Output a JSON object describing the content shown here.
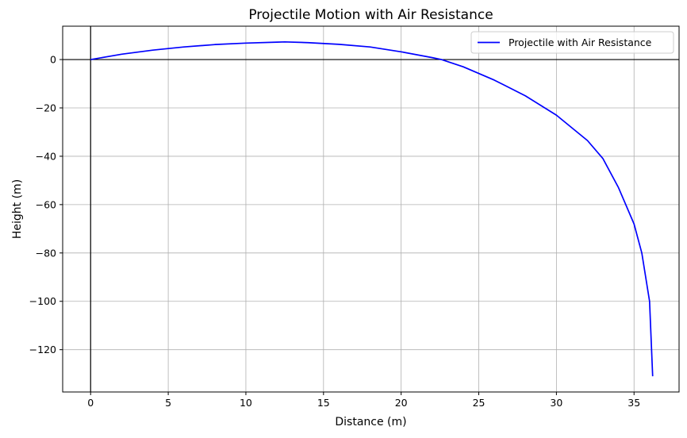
{
  "chart_data": {
    "type": "line",
    "title": "Projectile Motion with Air Resistance",
    "xlabel": "Distance (m)",
    "ylabel": "Height (m)",
    "xlim": [
      -1.8,
      37.9
    ],
    "ylim": [
      -137.5,
      13.8
    ],
    "xticks": [
      0,
      5,
      10,
      15,
      20,
      25,
      30,
      35
    ],
    "yticks": [
      0,
      -20,
      -40,
      -60,
      -80,
      -100,
      -120
    ],
    "xtick_labels": [
      "0",
      "5",
      "10",
      "15",
      "20",
      "25",
      "30",
      "35"
    ],
    "ytick_labels": [
      "0",
      "−20",
      "−40",
      "−60",
      "−80",
      "−100",
      "−120"
    ],
    "grid": true,
    "reference_lines": {
      "horizontal_y": 0,
      "vertical_x": 0
    },
    "legend_position": "top-right",
    "series": [
      {
        "name": "Projectile with Air Resistance",
        "color": "#0000ff",
        "x": [
          0,
          2,
          4,
          6,
          8,
          10,
          12,
          12.5,
          14,
          16,
          18,
          20,
          22,
          22.6,
          24,
          26,
          28,
          30,
          32,
          33,
          34,
          35,
          35.5,
          36,
          36.2
        ],
        "y": [
          0,
          2.2,
          3.9,
          5.2,
          6.2,
          6.8,
          7.2,
          7.3,
          7.0,
          6.3,
          5.2,
          3.2,
          0.8,
          0,
          -3.0,
          -8.5,
          -15.0,
          -23.0,
          -33.5,
          -41.0,
          -53.0,
          -68.0,
          -80.0,
          -100.0,
          -131.0
        ]
      }
    ]
  }
}
